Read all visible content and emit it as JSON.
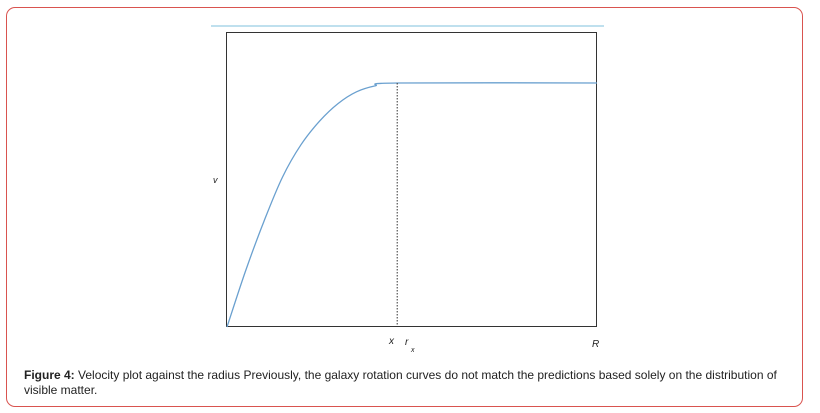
{
  "figure": {
    "caption_label": "Figure 4:",
    "caption_text": " Velocity plot against the radius Previously, the galaxy rotation curves do not match the predictions based solely on the distribution of visible matter."
  },
  "chart_data": {
    "type": "line",
    "title": "",
    "xlabel": "R",
    "ylabel": "v",
    "tick_labels": [
      "x",
      "r",
      "x"
    ],
    "xlim": [
      0,
      1
    ],
    "ylim": [
      0,
      1
    ],
    "grid": false,
    "legend": "none",
    "series": [
      {
        "color": "#6aa0cf",
        "x": [
          0.0,
          0.05,
          0.1,
          0.15,
          0.2,
          0.25,
          0.3,
          0.35,
          0.4,
          0.46,
          1.0
        ],
        "y": [
          0.0,
          0.19,
          0.36,
          0.51,
          0.62,
          0.7,
          0.76,
          0.8,
          0.82,
          0.83,
          0.83
        ]
      }
    ],
    "vline": {
      "x": 0.46,
      "style": "dotted"
    },
    "colors": {
      "curve": "#6aa0cf",
      "axes": "#333333",
      "top_rule": "#bfe0ee",
      "frame": "#d9534f"
    }
  }
}
